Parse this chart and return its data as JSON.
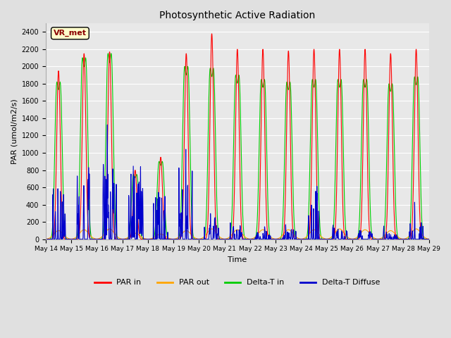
{
  "title": "Photosynthetic Active Radiation",
  "xlabel": "Time",
  "ylabel": "PAR (umol/m2/s)",
  "ylim": [
    0,
    2500
  ],
  "yticks": [
    0,
    200,
    400,
    600,
    800,
    1000,
    1200,
    1400,
    1600,
    1800,
    2000,
    2200,
    2400
  ],
  "n_days": 15,
  "start_day": 14,
  "colors": {
    "PAR_in": "#ff0000",
    "PAR_out": "#ffa500",
    "Delta_T_in": "#00cc00",
    "Delta_T_Diffuse": "#0000cc"
  },
  "legend_labels": [
    "PAR in",
    "PAR out",
    "Delta-T in",
    "Delta-T Diffuse"
  ],
  "annotation_text": "VR_met",
  "fig_bg": "#e0e0e0",
  "plot_bg": "#e8e8e8",
  "grid_color": "#ffffff"
}
